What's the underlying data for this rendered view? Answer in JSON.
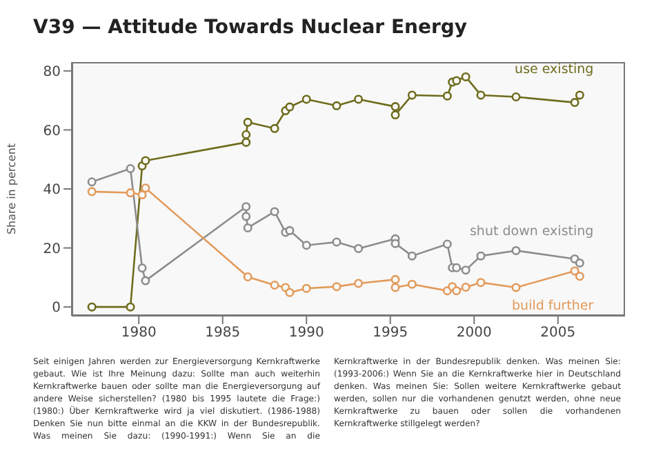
{
  "chart_data": {
    "type": "line",
    "title": "V39 — Attitude Towards Nuclear Energy",
    "ylabel": "Share in percent",
    "marker": "circle",
    "xlim": [
      1976,
      2009
    ],
    "xticks": [
      1980,
      1985,
      1990,
      1995,
      2000,
      2005
    ],
    "ylim": [
      -3,
      83
    ],
    "yticks": [
      0,
      20,
      40,
      60,
      80
    ],
    "x": [
      1977.2,
      1979.5,
      1980.2,
      1980.4,
      1986.4,
      1986.4,
      1986.5,
      1988.1,
      1988.75,
      1989.0,
      1990.0,
      1991.8,
      1993.1,
      1995.3,
      1995.3,
      1996.3,
      1998.4,
      1998.7,
      1998.95,
      1999.5,
      2000.4,
      2002.5,
      2006.0,
      2006.3
    ],
    "series": [
      {
        "name": "use existing",
        "color": "#6e6c1c",
        "values": [
          0,
          0,
          47.8,
          49.6,
          55.8,
          58.4,
          62.6,
          60.5,
          66.5,
          67.8,
          70.4,
          68.2,
          70.4,
          67.9,
          65.1,
          71.8,
          71.5,
          76.2,
          76.7,
          78.0,
          71.8,
          71.2,
          69.3,
          71.8
        ]
      },
      {
        "name": "shut down existing",
        "color": "#8c8c8c",
        "values": [
          42.4,
          46.9,
          13.2,
          8.9,
          34.0,
          30.7,
          26.8,
          32.3,
          25.3,
          25.9,
          20.9,
          22.0,
          19.8,
          23.1,
          21.5,
          17.3,
          21.3,
          13.3,
          13.3,
          12.5,
          17.3,
          19.1,
          16.3,
          14.9
        ]
      },
      {
        "name": "build further",
        "color": "#e39a5a",
        "values": [
          39.1,
          38.7,
          38.0,
          40.3,
          null,
          null,
          10.2,
          7.4,
          6.6,
          4.9,
          6.3,
          6.9,
          8.0,
          9.3,
          6.6,
          7.7,
          5.5,
          6.9,
          5.5,
          6.7,
          8.3,
          6.6,
          12.2,
          10.4
        ]
      }
    ],
    "annotations": [
      "Seit einigen Jahren werden zur Energieversorgung Kernkraftwerke gebaut. Wie ist Ihre Meinung dazu: Sollte man auch weiterhin Kernkraftwerke bauen oder sollte man die Energieversorgung auf andere Weise sicherstellen? (1980 bis 1995 lautete die Frage:) (1980:) Über Kernkraftwerke wird ja viel diskutiert. (1986-1988) Denken Sie nun bitte einmal an die KKW in der Bundesrepublik. Was meinen Sie dazu: (1990-1991:) Wenn Sie an die Kernkraftwerke in der Bundesrepublik denken. Was meinen Sie: (1993-2006:) Wenn Sie an die Kernkraftwerke hier in Deutschland denken. Was meinen Sie: Sollen weitere Kernkraftwerke gebaut werden, sollen nur die vorhandenen genutzt werden, ohne neue Kernkraftwerke zu bauen oder sollen die vorhandenen Kernkraftwerke stillgelegt werden?"
    ]
  }
}
